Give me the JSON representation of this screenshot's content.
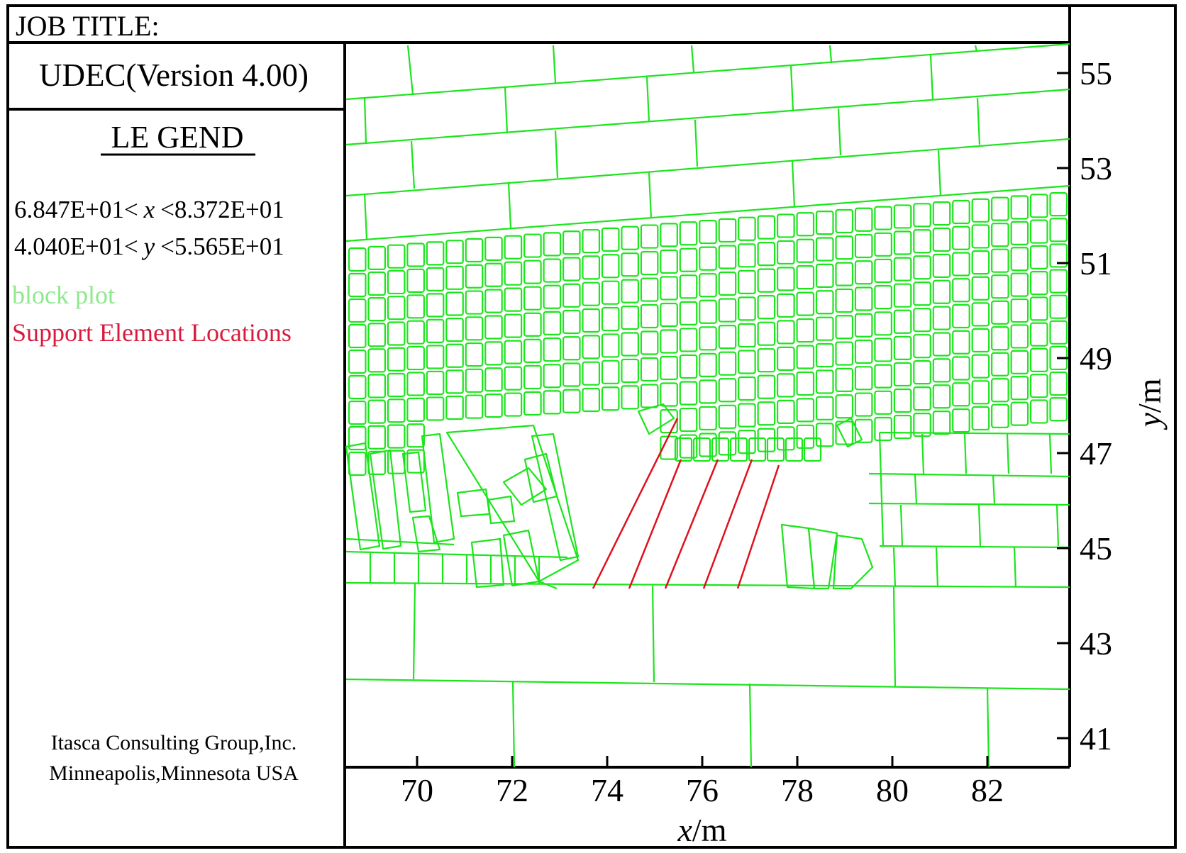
{
  "header": {
    "job_title": "JOB TITLE:"
  },
  "program": {
    "version": "UDEC(Version 4.00)"
  },
  "legend": {
    "title": "LE GEND",
    "x_range": {
      "min": "6.847E+01<",
      "var": "x",
      "max": "<8.372E+01"
    },
    "y_range": {
      "min": "4.040E+01<",
      "var": "y",
      "max": "<5.565E+01"
    },
    "items": [
      {
        "label": "block plot",
        "color": "#8ee88e"
      },
      {
        "label": "Support Element Locations",
        "color": "#d81b3c"
      }
    ]
  },
  "company": {
    "line1": "Itasca Consulting Group,Inc.",
    "line2": "Minneapolis,Minnesota USA"
  },
  "plot": {
    "block_color": "#1be51b",
    "support_color": "#e0101e",
    "x_axis": {
      "var": "x",
      "unit": "/m",
      "ticks": [
        "70",
        "72",
        "74",
        "76",
        "78",
        "80",
        "82"
      ]
    },
    "y_axis": {
      "var": "y",
      "unit": "/m",
      "ticks": [
        "55",
        "53",
        "51",
        "49",
        "47",
        "45",
        "43",
        "41"
      ]
    }
  }
}
